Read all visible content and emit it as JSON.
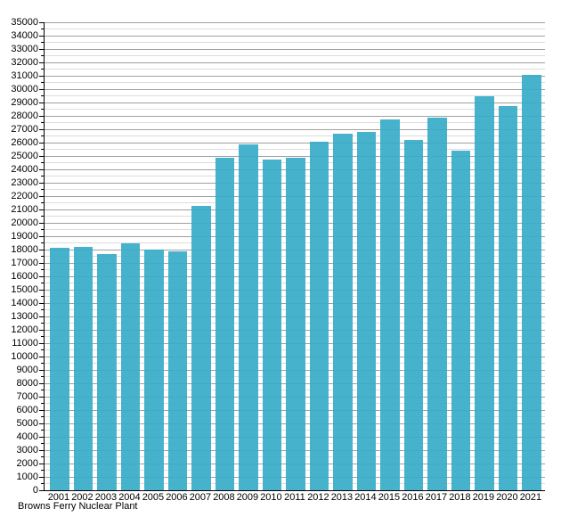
{
  "chart_data": {
    "type": "bar",
    "footer_label": "Browns Ferry Nuclear Plant",
    "categories": [
      "2001",
      "2002",
      "2003",
      "2004",
      "2005",
      "2006",
      "2007",
      "2008",
      "2009",
      "2010",
      "2011",
      "2012",
      "2013",
      "2014",
      "2015",
      "2016",
      "2017",
      "2018",
      "2019",
      "2020",
      "2021"
    ],
    "values": [
      18150,
      18200,
      17700,
      18500,
      18000,
      17900,
      21250,
      24900,
      25850,
      24750,
      24900,
      26100,
      26700,
      26800,
      27750,
      26200,
      27900,
      25400,
      29500,
      28750,
      31100
    ],
    "ylim": [
      0,
      35000
    ],
    "y_major_step": 1000,
    "y_minor_step": 500,
    "grid": "horizontal",
    "legend": "none",
    "bar_color": "#39acc8",
    "major_grid_color": "#a0a0a0",
    "minor_grid_color": "#dcdcdc",
    "axis_color": "#000000"
  }
}
